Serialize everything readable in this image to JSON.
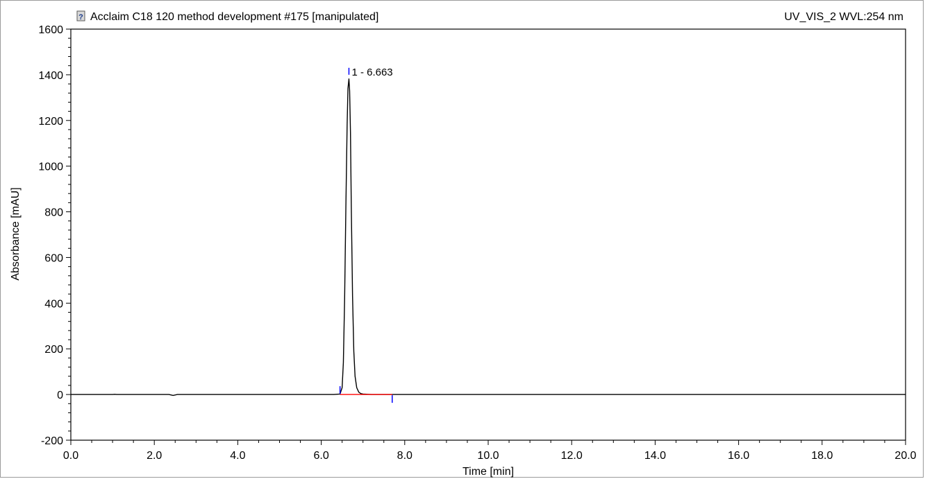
{
  "header": {
    "title": "Acclaim C18 120 method development #175 [manipulated]",
    "channel": "UV_VIS_2 WVL:254 nm",
    "icon": "help-document-icon"
  },
  "chart_data": {
    "type": "line",
    "title": "Acclaim C18 120 method development #175 [manipulated]",
    "subtitle": "UV_VIS_2 WVL:254 nm",
    "xlabel": "Time [min]",
    "ylabel": "Absorbance [mAU]",
    "xlim": [
      0.0,
      20.0
    ],
    "ylim": [
      -200,
      1600
    ],
    "x_ticks": [
      "0.0",
      "2.0",
      "4.0",
      "6.0",
      "8.0",
      "10.0",
      "12.0",
      "14.0",
      "16.0",
      "18.0",
      "20.0"
    ],
    "y_ticks": [
      "-200",
      "0",
      "200",
      "400",
      "600",
      "800",
      "1000",
      "1200",
      "1400",
      "1600"
    ],
    "grid": false,
    "colors": {
      "trace": "#000000",
      "baseline": "#ff0000",
      "markers": "#0000ff"
    },
    "series": [
      {
        "x": [
          0.0,
          1.0,
          1.05,
          1.1,
          2.35,
          2.45,
          2.55,
          6.3,
          6.45,
          6.5,
          6.53,
          6.56,
          6.59,
          6.62,
          6.64,
          6.663,
          6.68,
          6.7,
          6.72,
          6.75,
          6.78,
          6.81,
          6.85,
          6.9,
          6.95,
          7.0,
          7.2,
          10.0,
          12.0,
          14.0,
          16.0,
          18.0,
          20.0
        ],
        "y": [
          0,
          0,
          1,
          0,
          0,
          -4,
          0,
          0,
          2,
          30,
          140,
          420,
          820,
          1180,
          1340,
          1382,
          1330,
          1150,
          820,
          430,
          190,
          80,
          30,
          10,
          4,
          2,
          0,
          0,
          0,
          0,
          0,
          0,
          0
        ]
      }
    ],
    "baseline_segment": {
      "x": [
        6.45,
        7.7
      ],
      "y": [
        0,
        0
      ]
    },
    "peak_markers": {
      "start": 6.45,
      "apex": 6.663,
      "end": 7.7
    },
    "peaks": [
      {
        "label": "1 - 6.663",
        "number": 1,
        "retention_time": 6.663,
        "height": 1382
      }
    ]
  }
}
